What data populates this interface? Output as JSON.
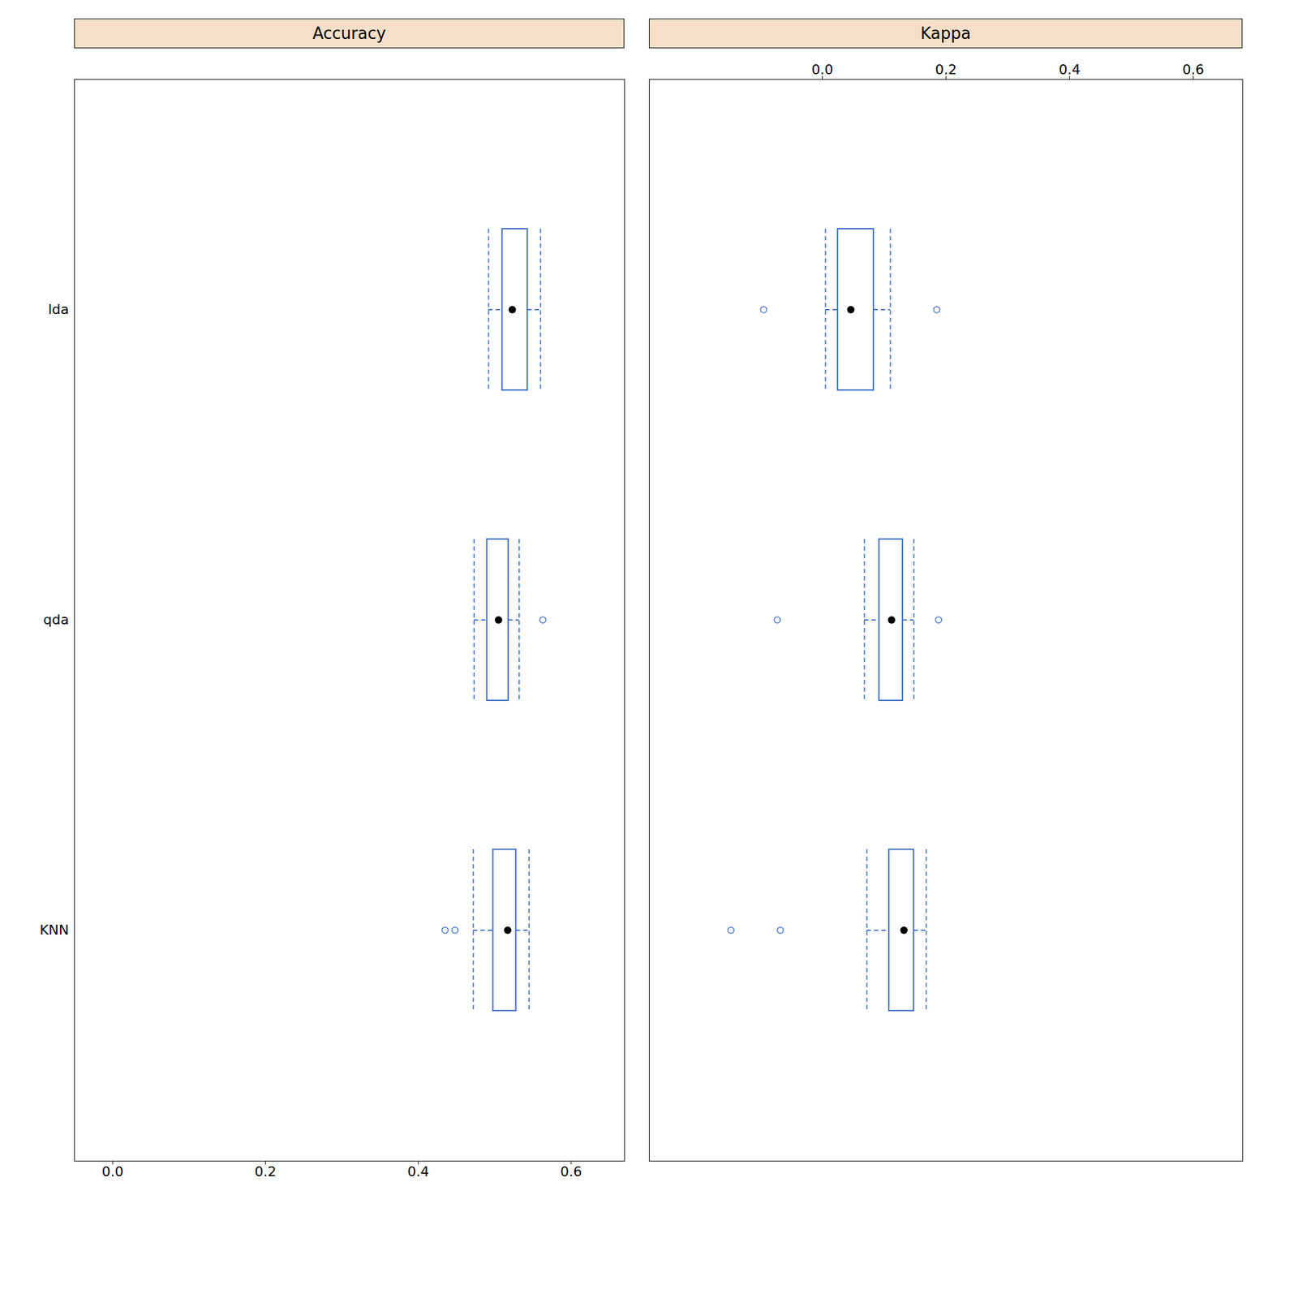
{
  "chart_data": [
    {
      "type": "box",
      "title": "Accuracy",
      "orientation": "horizontal",
      "categories": [
        "lda",
        "qda",
        "KNN"
      ],
      "boxes": [
        {
          "median": 0.523,
          "q1": 0.51,
          "q3": 0.543,
          "whisker_low": 0.492,
          "whisker_high": 0.56,
          "outliers": []
        },
        {
          "median": 0.505,
          "q1": 0.49,
          "q3": 0.518,
          "whisker_low": 0.473,
          "whisker_high": 0.532,
          "outliers": [
            0.563
          ]
        },
        {
          "median": 0.517,
          "q1": 0.498,
          "q3": 0.528,
          "whisker_low": 0.472,
          "whisker_high": 0.545,
          "outliers": [
            0.435,
            0.448
          ]
        }
      ],
      "xlim": [
        -0.05,
        0.67
      ],
      "xticks": [
        {
          "value": 0.0,
          "label": "0.0"
        },
        0.2,
        0.4,
        0.6
      ],
      "color": "#4472c4"
    },
    {
      "type": "box",
      "title": "Kappa",
      "orientation": "horizontal",
      "categories": [
        "lda",
        "qda",
        "KNN"
      ],
      "boxes": [
        {
          "median": 0.046,
          "q1": 0.025,
          "q3": 0.083,
          "whisker_low": 0.005,
          "whisker_high": 0.11,
          "outliers": [
            -0.095,
            0.185
          ]
        },
        {
          "median": 0.112,
          "q1": 0.092,
          "q3": 0.13,
          "whisker_low": 0.068,
          "whisker_high": 0.148,
          "outliers": [
            -0.073,
            0.188
          ]
        },
        {
          "median": 0.132,
          "q1": 0.108,
          "q3": 0.148,
          "whisker_low": 0.072,
          "whisker_high": 0.168,
          "outliers": [
            -0.148,
            -0.068
          ]
        }
      ],
      "xlim": [
        -0.28,
        0.68
      ],
      "xticks": [
        {
          "value": 0.0,
          "label": "0.0"
        },
        0.2,
        0.4,
        0.6
      ],
      "color": "#4472c4",
      "tick_labels": "x"
    }
  ]
}
